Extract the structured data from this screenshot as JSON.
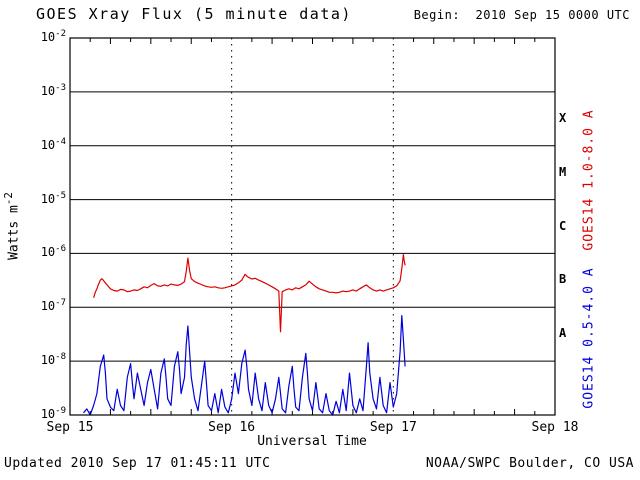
{
  "header": {
    "title": "GOES Xray Flux (5 minute data)",
    "begin": "Begin:  2010 Sep 15 0000 UTC"
  },
  "footer": {
    "updated": "Updated 2010 Sep 17 01:45:11 UTC",
    "source": "NOAA/SWPC Boulder, CO USA"
  },
  "axis": {
    "xlabel": "Universal Time",
    "ylabel_text": "Watts m",
    "ylabel_exp": "-2",
    "x_ticks": [
      {
        "label": "Sep 15",
        "hour": 0
      },
      {
        "label": "Sep 16",
        "hour": 24
      },
      {
        "label": "Sep 17",
        "hour": 48
      },
      {
        "label": "Sep 18",
        "hour": 72
      }
    ],
    "y_tick_exponents": [
      -2,
      -3,
      -4,
      -5,
      -6,
      -7,
      -8,
      -9
    ],
    "flare_classes": [
      {
        "label": "X",
        "center_exponent": -3.5
      },
      {
        "label": "M",
        "center_exponent": -4.5
      },
      {
        "label": "C",
        "center_exponent": -5.5
      },
      {
        "label": "B",
        "center_exponent": -6.5
      },
      {
        "label": "A",
        "center_exponent": -7.5
      }
    ]
  },
  "right_labels": {
    "long": "GOES14 1.0-8.0 A",
    "short": "GOES14 0.5-4.0 A"
  },
  "colors": {
    "long_series": "#dd0000",
    "short_series": "#0000dd",
    "axis": "#000000",
    "background": "#ffffff"
  },
  "chart_data": {
    "type": "line",
    "title": "GOES Xray Flux (5 minute data)",
    "xlabel": "Universal Time",
    "ylabel": "Watts m^-2",
    "x_unit": "hours since 2010 Sep 15 0000 UTC",
    "xlim_hours": [
      0,
      72
    ],
    "y_log10_range": [
      -9,
      -2
    ],
    "y_decades": [
      -2,
      -3,
      -4,
      -5,
      -6,
      -7,
      -8,
      -9
    ],
    "day_gridlines_hours": [
      24,
      48
    ],
    "grid": "horizontal solid per decade, vertical dotted per day",
    "legend_position": "right margin, rotated",
    "series": [
      {
        "name": "GOES14 1.0-8.0 A",
        "color": "#dd0000",
        "points": [
          [
            3.5,
            1.5e-07
          ],
          [
            3.75,
            1.9e-07
          ],
          [
            4,
            2.2e-07
          ],
          [
            4.25,
            2.7e-07
          ],
          [
            4.5,
            3.2e-07
          ],
          [
            4.75,
            3.4e-07
          ],
          [
            5,
            3.1e-07
          ],
          [
            5.5,
            2.6e-07
          ],
          [
            6,
            2.2e-07
          ],
          [
            6.5,
            2.05e-07
          ],
          [
            7,
            2e-07
          ],
          [
            7.5,
            2.15e-07
          ],
          [
            8,
            2.1e-07
          ],
          [
            8.5,
            1.95e-07
          ],
          [
            9,
            2e-07
          ],
          [
            9.5,
            2.1e-07
          ],
          [
            10,
            2.05e-07
          ],
          [
            10.5,
            2.2e-07
          ],
          [
            11,
            2.4e-07
          ],
          [
            11.5,
            2.3e-07
          ],
          [
            12,
            2.55e-07
          ],
          [
            12.5,
            2.75e-07
          ],
          [
            13,
            2.5e-07
          ],
          [
            13.5,
            2.45e-07
          ],
          [
            14,
            2.6e-07
          ],
          [
            14.5,
            2.5e-07
          ],
          [
            15,
            2.7e-07
          ],
          [
            15.5,
            2.6e-07
          ],
          [
            16,
            2.55e-07
          ],
          [
            16.5,
            2.7e-07
          ],
          [
            17,
            3e-07
          ],
          [
            17.25,
            4.6e-07
          ],
          [
            17.5,
            8.2e-07
          ],
          [
            17.75,
            4.8e-07
          ],
          [
            18,
            3.4e-07
          ],
          [
            18.5,
            3e-07
          ],
          [
            19,
            2.8e-07
          ],
          [
            19.5,
            2.65e-07
          ],
          [
            20,
            2.5e-07
          ],
          [
            20.5,
            2.4e-07
          ],
          [
            21,
            2.35e-07
          ],
          [
            21.5,
            2.4e-07
          ],
          [
            22,
            2.3e-07
          ],
          [
            22.5,
            2.25e-07
          ],
          [
            23,
            2.3e-07
          ],
          [
            23.5,
            2.4e-07
          ],
          [
            24,
            2.5e-07
          ],
          [
            24.5,
            2.6e-07
          ],
          [
            25,
            2.85e-07
          ],
          [
            25.5,
            3.2e-07
          ],
          [
            26,
            4.1e-07
          ],
          [
            26.25,
            3.8e-07
          ],
          [
            26.5,
            3.6e-07
          ],
          [
            27,
            3.35e-07
          ],
          [
            27.5,
            3.45e-07
          ],
          [
            28,
            3.2e-07
          ],
          [
            28.5,
            3e-07
          ],
          [
            29,
            2.8e-07
          ],
          [
            29.5,
            2.6e-07
          ],
          [
            30,
            2.4e-07
          ],
          [
            30.5,
            2.2e-07
          ],
          [
            31,
            2e-07
          ],
          [
            31.25,
            3.5e-08
          ],
          [
            31.5,
            1.95e-07
          ],
          [
            32,
            2.1e-07
          ],
          [
            32.5,
            2.2e-07
          ],
          [
            33,
            2.1e-07
          ],
          [
            33.5,
            2.3e-07
          ],
          [
            34,
            2.2e-07
          ],
          [
            34.5,
            2.4e-07
          ],
          [
            35,
            2.6e-07
          ],
          [
            35.5,
            3.05e-07
          ],
          [
            36,
            2.7e-07
          ],
          [
            36.5,
            2.4e-07
          ],
          [
            37,
            2.2e-07
          ],
          [
            37.5,
            2.1e-07
          ],
          [
            38,
            2e-07
          ],
          [
            38.5,
            1.9e-07
          ],
          [
            39,
            1.9e-07
          ],
          [
            39.5,
            1.85e-07
          ],
          [
            40,
            1.9e-07
          ],
          [
            40.5,
            2e-07
          ],
          [
            41,
            1.95e-07
          ],
          [
            41.5,
            2e-07
          ],
          [
            42,
            2.1e-07
          ],
          [
            42.5,
            2e-07
          ],
          [
            43,
            2.2e-07
          ],
          [
            43.5,
            2.4e-07
          ],
          [
            44,
            2.6e-07
          ],
          [
            44.5,
            2.3e-07
          ],
          [
            45,
            2.1e-07
          ],
          [
            45.5,
            2e-07
          ],
          [
            46,
            2.1e-07
          ],
          [
            46.5,
            2e-07
          ],
          [
            47,
            2.1e-07
          ],
          [
            47.5,
            2.2e-07
          ],
          [
            48,
            2.3e-07
          ],
          [
            48.5,
            2.5e-07
          ],
          [
            49,
            3.1e-07
          ],
          [
            49.25,
            5.2e-07
          ],
          [
            49.5,
            9.5e-07
          ],
          [
            49.6,
            7.5e-07
          ],
          [
            49.75,
            6e-07
          ]
        ]
      },
      {
        "name": "GOES14 0.5-4.0 A",
        "color": "#0000dd",
        "points": [
          [
            2,
            1.1e-09
          ],
          [
            2.5,
            1.3e-09
          ],
          [
            3,
            1e-09
          ],
          [
            3.5,
            1.5e-09
          ],
          [
            4,
            2.5e-09
          ],
          [
            4.5,
            8e-09
          ],
          [
            5,
            1.3e-08
          ],
          [
            5.25,
            6e-09
          ],
          [
            5.5,
            2e-09
          ],
          [
            6,
            1.4e-09
          ],
          [
            6.5,
            1.2e-09
          ],
          [
            7,
            3e-09
          ],
          [
            7.5,
            1.5e-09
          ],
          [
            8,
            1.2e-09
          ],
          [
            8.5,
            5e-09
          ],
          [
            9,
            9e-09
          ],
          [
            9.25,
            4e-09
          ],
          [
            9.5,
            2e-09
          ],
          [
            10,
            6e-09
          ],
          [
            10.5,
            3e-09
          ],
          [
            11,
            1.5e-09
          ],
          [
            11.5,
            4e-09
          ],
          [
            12,
            7e-09
          ],
          [
            12.5,
            3e-09
          ],
          [
            13,
            1.3e-09
          ],
          [
            13.5,
            6e-09
          ],
          [
            14,
            1.1e-08
          ],
          [
            14.25,
            5e-09
          ],
          [
            14.5,
            2e-09
          ],
          [
            15,
            1.5e-09
          ],
          [
            15.5,
            8e-09
          ],
          [
            16,
            1.5e-08
          ],
          [
            16.25,
            7e-09
          ],
          [
            16.5,
            2.5e-09
          ],
          [
            17,
            5e-09
          ],
          [
            17.25,
            2e-08
          ],
          [
            17.5,
            4.5e-08
          ],
          [
            17.75,
            1.5e-08
          ],
          [
            18,
            5e-09
          ],
          [
            18.5,
            2e-09
          ],
          [
            19,
            1.2e-09
          ],
          [
            19.5,
            3.5e-09
          ],
          [
            20,
            1e-08
          ],
          [
            20.25,
            4e-09
          ],
          [
            20.5,
            1.5e-09
          ],
          [
            21,
            1.2e-09
          ],
          [
            21.5,
            2.5e-09
          ],
          [
            22,
            1.1e-09
          ],
          [
            22.5,
            3e-09
          ],
          [
            23,
            1.4e-09
          ],
          [
            23.5,
            1.1e-09
          ],
          [
            24,
            2e-09
          ],
          [
            24.5,
            6e-09
          ],
          [
            25,
            2.5e-09
          ],
          [
            25.5,
            9e-09
          ],
          [
            26,
            1.6e-08
          ],
          [
            26.25,
            8e-09
          ],
          [
            26.5,
            3e-09
          ],
          [
            27,
            1.5e-09
          ],
          [
            27.5,
            6e-09
          ],
          [
            28,
            2e-09
          ],
          [
            28.5,
            1.2e-09
          ],
          [
            29,
            4e-09
          ],
          [
            29.5,
            1.5e-09
          ],
          [
            30,
            1.1e-09
          ],
          [
            30.5,
            2e-09
          ],
          [
            31,
            5e-09
          ],
          [
            31.5,
            1.3e-09
          ],
          [
            32,
            1.1e-09
          ],
          [
            32.5,
            3.5e-09
          ],
          [
            33,
            8e-09
          ],
          [
            33.25,
            3e-09
          ],
          [
            33.5,
            1.4e-09
          ],
          [
            34,
            1.2e-09
          ],
          [
            34.5,
            5e-09
          ],
          [
            35,
            1.4e-08
          ],
          [
            35.25,
            6e-09
          ],
          [
            35.5,
            2e-09
          ],
          [
            36,
            1.2e-09
          ],
          [
            36.5,
            4e-09
          ],
          [
            37,
            1.3e-09
          ],
          [
            37.5,
            1.1e-09
          ],
          [
            38,
            2.5e-09
          ],
          [
            38.5,
            1.2e-09
          ],
          [
            39,
            1e-09
          ],
          [
            39.5,
            1.8e-09
          ],
          [
            40,
            1.1e-09
          ],
          [
            40.5,
            3e-09
          ],
          [
            41,
            1.2e-09
          ],
          [
            41.5,
            6e-09
          ],
          [
            42,
            1.5e-09
          ],
          [
            42.5,
            1.1e-09
          ],
          [
            43,
            2e-09
          ],
          [
            43.5,
            1.2e-09
          ],
          [
            44,
            8e-09
          ],
          [
            44.25,
            2.2e-08
          ],
          [
            44.5,
            6e-09
          ],
          [
            45,
            2e-09
          ],
          [
            45.5,
            1.3e-09
          ],
          [
            46,
            5e-09
          ],
          [
            46.5,
            1.5e-09
          ],
          [
            47,
            1.1e-09
          ],
          [
            47.5,
            4e-09
          ],
          [
            48,
            1.4e-09
          ],
          [
            48.5,
            2.5e-09
          ],
          [
            49,
            1.5e-08
          ],
          [
            49.25,
            7e-08
          ],
          [
            49.5,
            2.5e-08
          ],
          [
            49.75,
            8e-09
          ]
        ]
      }
    ]
  }
}
